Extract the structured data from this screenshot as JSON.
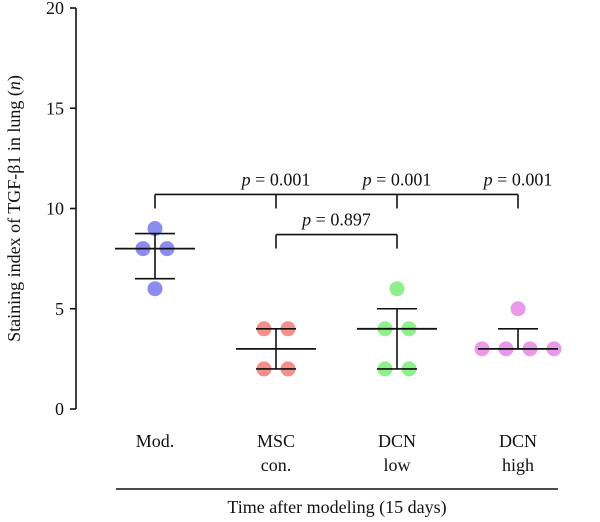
{
  "chart_data": {
    "type": "scatter",
    "ylabel": "Staining index of TGF-β1 in lung (n)",
    "xlabel": "Time after modeling (15 days)",
    "ylim": [
      0,
      20
    ],
    "yticks": [
      0,
      5,
      10,
      15,
      20
    ],
    "grid": false,
    "groups": [
      {
        "label_lines": [
          "Mod."
        ],
        "color": "#8c8cf0",
        "points": [
          9,
          8,
          8,
          6
        ],
        "mean": 8,
        "err_low": 6.5,
        "err_high": 8.75
      },
      {
        "label_lines": [
          "MSC",
          "con."
        ],
        "color": "#f4908c",
        "points": [
          4,
          4,
          2,
          2
        ],
        "mean": 3,
        "err_low": 2,
        "err_high": 4
      },
      {
        "label_lines": [
          "DCN",
          "low"
        ],
        "color": "#8ef08c",
        "points": [
          6,
          4,
          4,
          2,
          2
        ],
        "mean": 4,
        "err_low": 2,
        "err_high": 5
      },
      {
        "label_lines": [
          "DCN",
          "high"
        ],
        "color": "#e89ae8",
        "points": [
          5,
          3,
          3,
          3,
          3
        ],
        "mean": 3,
        "err_low": 3,
        "err_high": 4
      }
    ],
    "comparisons": [
      {
        "from": 0,
        "to": 3,
        "y": 10.7,
        "drops": [
          1,
          2,
          3
        ],
        "labels": [
          {
            "at": 1,
            "text": "p = 0.001"
          },
          {
            "at": 2,
            "text": "p = 0.001"
          },
          {
            "at": 3,
            "text": "p = 0.001"
          }
        ]
      },
      {
        "from": 1,
        "to": 2,
        "y": 8.7,
        "drops": [],
        "labels": [
          {
            "at": 1.5,
            "text": "p = 0.897"
          }
        ]
      }
    ]
  }
}
